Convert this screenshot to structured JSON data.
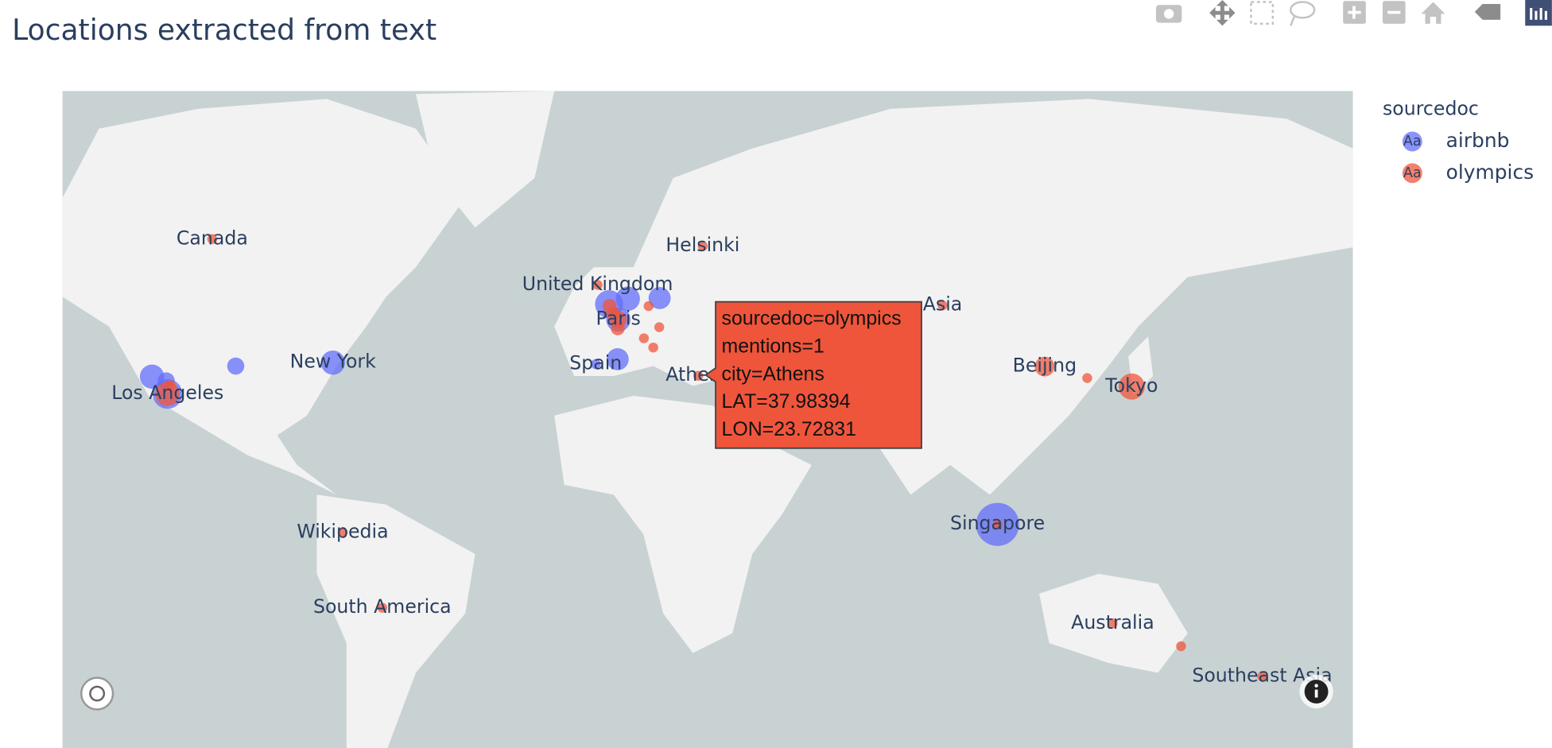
{
  "chart_data": {
    "type": "scatter_map",
    "title": "Locations extracted from text",
    "legend_title": "sourcedoc",
    "legend_symbol_text": "Aa",
    "series": [
      {
        "name": "airbnb",
        "color": "#636efa",
        "lon": [
          -118.24,
          -122.4,
          -118.6,
          -100.0,
          -74.0,
          -0.13,
          4.9,
          13.4,
          2.35,
          2.17,
          -3.7,
          103.8
        ],
        "lat": [
          34.05,
          37.8,
          36.9,
          40.0,
          40.7,
          51.5,
          52.4,
          52.5,
          48.86,
          41.39,
          40.4,
          1.35
        ],
        "mentions": [
          9,
          6,
          3,
          3,
          6,
          8,
          6,
          5,
          6,
          5,
          1,
          19
        ],
        "text": [
          "Los Angeles",
          null,
          null,
          null,
          "New York",
          null,
          null,
          null,
          null,
          null,
          "Spain",
          "Singapore"
        ]
      },
      {
        "name": "olympics",
        "color": "#ef553b",
        "lon": [
          -106.3,
          -118.24,
          -117.5,
          -71.4,
          -60.8,
          24.94,
          -3.2,
          2.35,
          0.0,
          1.0,
          2.2,
          10.45,
          13.3,
          9.19,
          11.7,
          23.72831,
          89.1,
          116.4,
          127.8,
          139.69,
          103.8,
          134.6,
          152.9,
          174.6
        ],
        "lat": [
          61.1,
          34.05,
          36.0,
          -0.8,
          -20.5,
          60.17,
          54.6,
          48.86,
          51.2,
          49.9,
          47.3,
          51.17,
          47.5,
          45.46,
          43.7,
          37.98394,
          51.3,
          39.9,
          37.5,
          35.68,
          1.35,
          -24.4,
          -29.8,
          -36.6
        ],
        "mentions": [
          1,
          6,
          1,
          1,
          1,
          1,
          1,
          3,
          2,
          2,
          2,
          1,
          1,
          1,
          1,
          1,
          1,
          4,
          1,
          7,
          1,
          1,
          1,
          1
        ],
        "text": [
          "Canada",
          null,
          null,
          "Wikipedia",
          "South America",
          "Helsinki",
          "United Kingdom",
          "Paris",
          null,
          null,
          null,
          null,
          null,
          null,
          null,
          "Athens",
          "Asia",
          "Beijing",
          null,
          "Tokyo",
          null,
          "Australia",
          null,
          "Southeast Asia"
        ]
      }
    ],
    "tooltip": {
      "lines": [
        "sourcedoc=olympics",
        "mentions=1",
        "city=Athens",
        "LAT=37.98394",
        "LON=23.72831"
      ]
    }
  }
}
